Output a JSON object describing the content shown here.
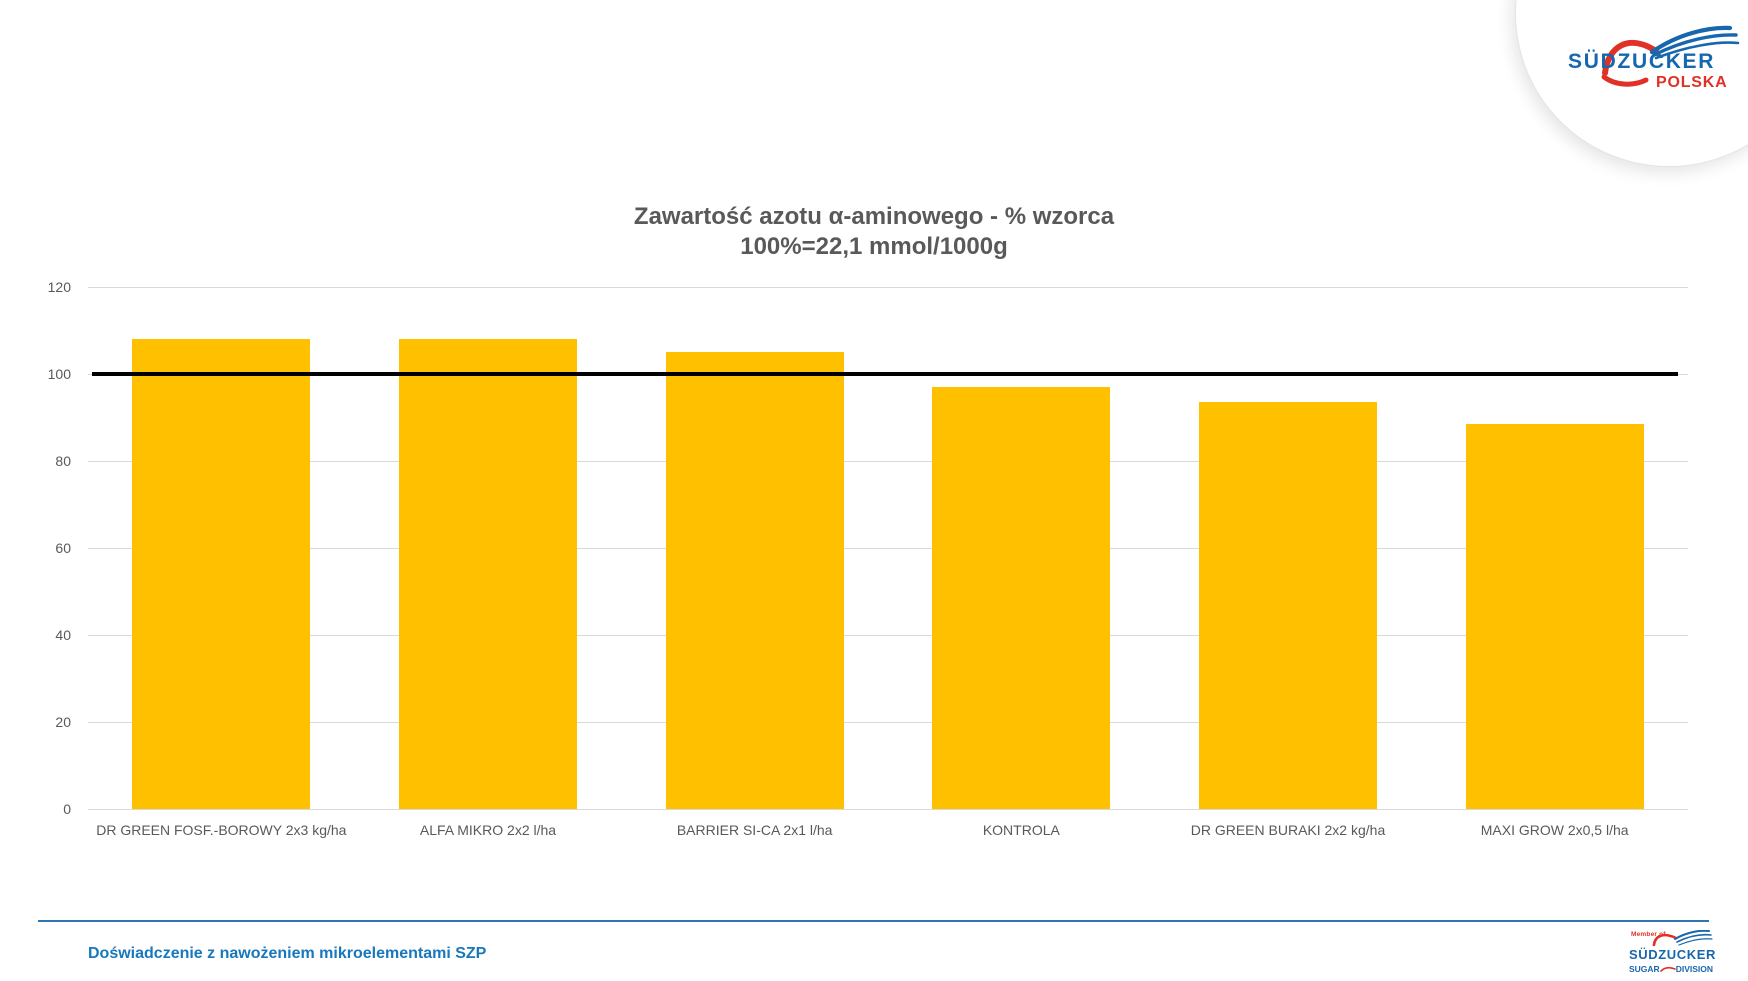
{
  "header_logo": {
    "brand": "SÜDZUCKER",
    "region": "POLSKA"
  },
  "chart_data": {
    "type": "bar",
    "title": "Zawartość azotu α-aminowego - % wzorca",
    "subtitle": "100%=22,1 mmol/1000g",
    "categories": [
      "DR GREEN FOSF.-BOROWY 2x3 kg/ha",
      "ALFA MIKRO 2x2 l/ha",
      "BARRIER SI-CA 2x1 l/ha",
      "KONTROLA",
      "DR GREEN BURAKI 2x2 kg/ha",
      "MAXI GROW 2x0,5 l/ha"
    ],
    "values": [
      108,
      108,
      105,
      97,
      93.5,
      88.5
    ],
    "xlabel": "",
    "ylabel": "",
    "ylim": [
      0,
      120
    ],
    "y_ticks": [
      0,
      20,
      40,
      60,
      80,
      100,
      120
    ],
    "grid": true,
    "legend": "none",
    "bar_color": "#FFC000",
    "gridline_color": "#d9d9d9",
    "reference_line": {
      "value": 100,
      "color": "#000000"
    }
  },
  "footer": {
    "caption": "Doświadczenie z nawożeniem mikroelementami SZP",
    "caption_color": "#1778BE",
    "rule_color": "#2E75B6",
    "logo": {
      "member_of": "Member of",
      "brand": "SÜDZUCKER",
      "division_left": "SUGAR",
      "division_right": "DIVISION"
    }
  },
  "colors": {
    "text_gray": "#595959",
    "brand_blue": "#1767AE",
    "brand_red": "#E03127"
  }
}
